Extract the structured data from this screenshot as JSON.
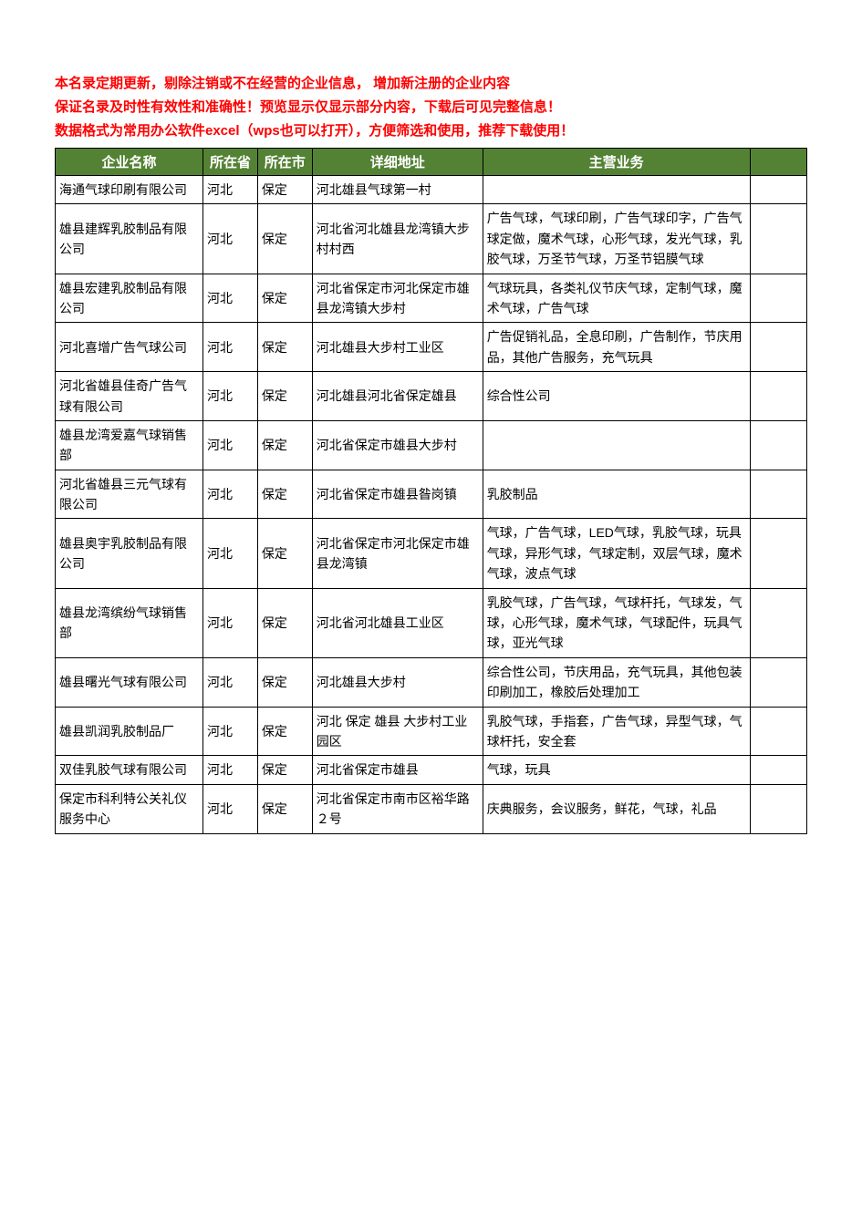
{
  "notices": [
    "本名录定期更新，剔除注销或不在经营的企业信息， 增加新注册的企业内容",
    "保证名录及时性有效性和准确性！预览显示仅显示部分内容，下载后可见完整信息！",
    "数据格式为常用办公软件excel（wps也可以打开），方便筛选和使用，推荐下载使用！"
  ],
  "table": {
    "header_bg": "#548235",
    "header_color": "#ffffff",
    "border_color": "#000000",
    "columns": [
      "企业名称",
      "所在省",
      "所在市",
      "详细地址",
      "主营业务",
      ""
    ],
    "rows": [
      {
        "name": "海通气球印刷有限公司",
        "province": "河北",
        "city": "保定",
        "address": "河北雄县气球第一村",
        "business": ""
      },
      {
        "name": "雄县建辉乳胶制品有限公司",
        "province": "河北",
        "city": "保定",
        "address": "河北省河北雄县龙湾镇大步村村西",
        "business": "广告气球，气球印刷，广告气球印字，广告气球定做，魔术气球，心形气球，发光气球，乳胶气球，万圣节气球，万圣节铝膜气球"
      },
      {
        "name": "雄县宏建乳胶制品有限公司",
        "province": "河北",
        "city": "保定",
        "address": "河北省保定市河北保定市雄县龙湾镇大步村",
        "business": "气球玩具，各类礼仪节庆气球，定制气球，魔术气球，广告气球"
      },
      {
        "name": "河北喜增广告气球公司",
        "province": "河北",
        "city": "保定",
        "address": "河北雄县大步村工业区",
        "business": "广告促销礼品，全息印刷，广告制作，节庆用品，其他广告服务，充气玩具"
      },
      {
        "name": "河北省雄县佳奇广告气球有限公司",
        "province": "河北",
        "city": "保定",
        "address": "河北雄县河北省保定雄县",
        "business": "综合性公司"
      },
      {
        "name": "雄县龙湾爱嘉气球销售部",
        "province": "河北",
        "city": "保定",
        "address": "河北省保定市雄县大步村",
        "business": ""
      },
      {
        "name": "河北省雄县三元气球有限公司",
        "province": "河北",
        "city": "保定",
        "address": "河北省保定市雄县昝岗镇",
        "business": "乳胶制品"
      },
      {
        "name": "雄县奥宇乳胶制品有限公司",
        "province": "河北",
        "city": "保定",
        "address": "河北省保定市河北保定市雄县龙湾镇",
        "business": "气球，广告气球，LED气球，乳胶气球，玩具气球，异形气球，气球定制，双层气球，魔术气球，波点气球"
      },
      {
        "name": "雄县龙湾缤纷气球销售部",
        "province": "河北",
        "city": "保定",
        "address": "河北省河北雄县工业区",
        "business": "乳胶气球，广告气球，气球杆托，气球发，气球，心形气球，魔术气球，气球配件，玩具气球，亚光气球"
      },
      {
        "name": "雄县曙光气球有限公司",
        "province": "河北",
        "city": "保定",
        "address": "河北雄县大步村",
        "business": "综合性公司，节庆用品，充气玩具，其他包装印刷加工，橡胶后处理加工"
      },
      {
        "name": "雄县凯润乳胶制品厂",
        "province": "河北",
        "city": "保定",
        "address": "河北 保定 雄县 大步村工业园区",
        "business": "乳胶气球，手指套，广告气球，异型气球，气球杆托，安全套"
      },
      {
        "name": "双佳乳胶气球有限公司",
        "province": "河北",
        "city": "保定",
        "address": "河北省保定市雄县",
        "business": "气球，玩具"
      },
      {
        "name": "保定市科利特公关礼仪服务中心",
        "province": "河北",
        "city": "保定",
        "address": "河北省保定市南市区裕华路２号",
        "business": "庆典服务，会议服务，鲜花，气球，礼品"
      }
    ]
  }
}
